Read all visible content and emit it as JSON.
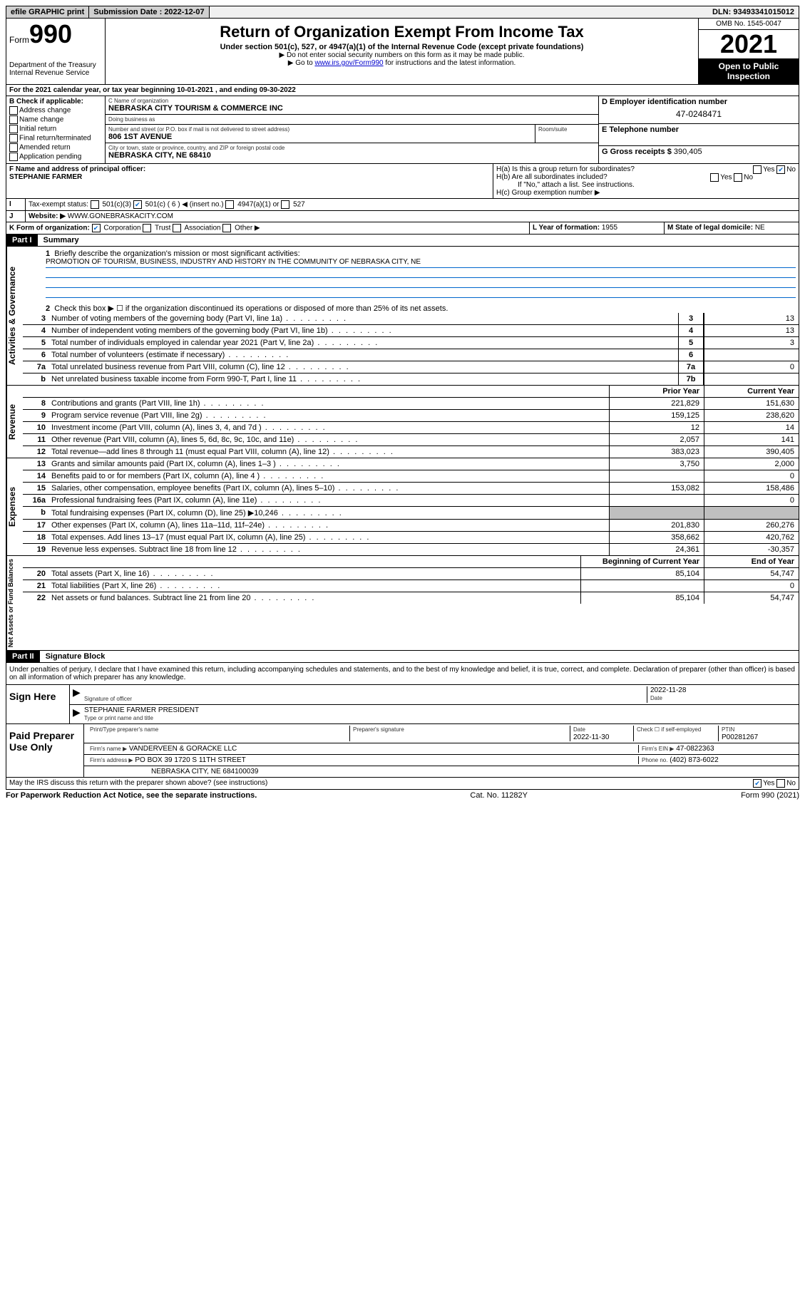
{
  "topbar": {
    "efile": "efile GRAPHIC print",
    "sub_label": "Submission Date : 2022-12-07",
    "dln": "DLN: 93493341015012"
  },
  "header": {
    "form_prefix": "Form",
    "form_num": "990",
    "dept": "Department of the Treasury Internal Revenue Service",
    "title": "Return of Organization Exempt From Income Tax",
    "subtitle": "Under section 501(c), 527, or 4947(a)(1) of the Internal Revenue Code (except private foundations)",
    "note1": "▶ Do not enter social security numbers on this form as it may be made public.",
    "note2_pre": "▶ Go to ",
    "note2_link": "www.irs.gov/Form990",
    "note2_post": " for instructions and the latest information.",
    "omb": "OMB No. 1545-0047",
    "year": "2021",
    "inspect": "Open to Public Inspection"
  },
  "line_a": "For the 2021 calendar year, or tax year beginning 10-01-2021  , and ending 09-30-2022",
  "section_b": {
    "label": "B Check if applicable:",
    "items": [
      "Address change",
      "Name change",
      "Initial return",
      "Final return/terminated",
      "Amended return",
      "Application pending"
    ]
  },
  "section_c": {
    "name_label": "C Name of organization",
    "name": "NEBRASKA CITY TOURISM & COMMERCE INC",
    "dba_label": "Doing business as",
    "street_label": "Number and street (or P.O. box if mail is not delivered to street address)",
    "room_label": "Room/suite",
    "street": "806 1ST AVENUE",
    "city_label": "City or town, state or province, country, and ZIP or foreign postal code",
    "city": "NEBRASKA CITY, NE  68410"
  },
  "section_d": {
    "label": "D Employer identification number",
    "value": "47-0248471"
  },
  "section_e": {
    "label": "E Telephone number",
    "value": ""
  },
  "section_g": {
    "label": "G Gross receipts $",
    "value": "390,405"
  },
  "section_f": {
    "label": "F Name and address of principal officer:",
    "name": "STEPHANIE FARMER"
  },
  "section_h": {
    "a": "H(a)  Is this a group return for subordinates?",
    "b": "H(b)  Are all subordinates included?",
    "b_note": "If \"No,\" attach a list. See instructions.",
    "c": "H(c)  Group exemption number ▶",
    "yes": "Yes",
    "no": "No"
  },
  "section_i": {
    "label": "Tax-exempt status:",
    "c3": "501(c)(3)",
    "c": "501(c) ( 6 ) ◀ (insert no.)",
    "a1": "4947(a)(1) or",
    "s527": "527"
  },
  "section_j": {
    "label": "Website: ▶",
    "value": "WWW.GONEBRASKACITY.COM"
  },
  "section_k": {
    "label": "K Form of organization:",
    "opts": [
      "Corporation",
      "Trust",
      "Association",
      "Other ▶"
    ]
  },
  "section_l": {
    "label": "L Year of formation:",
    "value": "1955"
  },
  "section_m": {
    "label": "M State of legal domicile:",
    "value": "NE"
  },
  "part1": {
    "header": "Part I",
    "title": "Summary",
    "line1_label": "Briefly describe the organization's mission or most significant activities:",
    "mission": "PROMOTION OF TOURISM, BUSINESS, INDUSTRY AND HISTORY IN THE COMMUNITY OF NEBRASKA CITY, NE",
    "line2_label": "Check this box ▶ ☐ if the organization discontinued its operations or disposed of more than 25% of its net assets.",
    "sections": {
      "governance": "Activities & Governance",
      "revenue": "Revenue",
      "expenses": "Expenses",
      "netassets": "Net Assets or Fund Balances"
    },
    "gov_lines": [
      {
        "num": "3",
        "desc": "Number of voting members of the governing body (Part VI, line 1a)",
        "ref": "3",
        "val": "13"
      },
      {
        "num": "4",
        "desc": "Number of independent voting members of the governing body (Part VI, line 1b)",
        "ref": "4",
        "val": "13"
      },
      {
        "num": "5",
        "desc": "Total number of individuals employed in calendar year 2021 (Part V, line 2a)",
        "ref": "5",
        "val": "3"
      },
      {
        "num": "6",
        "desc": "Total number of volunteers (estimate if necessary)",
        "ref": "6",
        "val": ""
      },
      {
        "num": "7a",
        "desc": "Total unrelated business revenue from Part VIII, column (C), line 12",
        "ref": "7a",
        "val": "0"
      },
      {
        "num": "b",
        "desc": "Net unrelated business taxable income from Form 990-T, Part I, line 11",
        "ref": "7b",
        "val": ""
      }
    ],
    "prior_label": "Prior Year",
    "current_label": "Current Year",
    "rev_lines": [
      {
        "num": "8",
        "desc": "Contributions and grants (Part VIII, line 1h)",
        "prior": "221,829",
        "curr": "151,630"
      },
      {
        "num": "9",
        "desc": "Program service revenue (Part VIII, line 2g)",
        "prior": "159,125",
        "curr": "238,620"
      },
      {
        "num": "10",
        "desc": "Investment income (Part VIII, column (A), lines 3, 4, and 7d )",
        "prior": "12",
        "curr": "14"
      },
      {
        "num": "11",
        "desc": "Other revenue (Part VIII, column (A), lines 5, 6d, 8c, 9c, 10c, and 11e)",
        "prior": "2,057",
        "curr": "141"
      },
      {
        "num": "12",
        "desc": "Total revenue—add lines 8 through 11 (must equal Part VIII, column (A), line 12)",
        "prior": "383,023",
        "curr": "390,405"
      }
    ],
    "exp_lines": [
      {
        "num": "13",
        "desc": "Grants and similar amounts paid (Part IX, column (A), lines 1–3 )",
        "prior": "3,750",
        "curr": "2,000"
      },
      {
        "num": "14",
        "desc": "Benefits paid to or for members (Part IX, column (A), line 4 )",
        "prior": "",
        "curr": "0"
      },
      {
        "num": "15",
        "desc": "Salaries, other compensation, employee benefits (Part IX, column (A), lines 5–10)",
        "prior": "153,082",
        "curr": "158,486"
      },
      {
        "num": "16a",
        "desc": "Professional fundraising fees (Part IX, column (A), line 11e)",
        "prior": "",
        "curr": "0"
      },
      {
        "num": "b",
        "desc": "Total fundraising expenses (Part IX, column (D), line 25) ▶10,246",
        "prior": "grey",
        "curr": "grey"
      },
      {
        "num": "17",
        "desc": "Other expenses (Part IX, column (A), lines 11a–11d, 11f–24e)",
        "prior": "201,830",
        "curr": "260,276"
      },
      {
        "num": "18",
        "desc": "Total expenses. Add lines 13–17 (must equal Part IX, column (A), line 25)",
        "prior": "358,662",
        "curr": "420,762"
      },
      {
        "num": "19",
        "desc": "Revenue less expenses. Subtract line 18 from line 12",
        "prior": "24,361",
        "curr": "-30,357"
      }
    ],
    "begin_label": "Beginning of Current Year",
    "end_label": "End of Year",
    "net_lines": [
      {
        "num": "20",
        "desc": "Total assets (Part X, line 16)",
        "prior": "85,104",
        "curr": "54,747"
      },
      {
        "num": "21",
        "desc": "Total liabilities (Part X, line 26)",
        "prior": "",
        "curr": "0"
      },
      {
        "num": "22",
        "desc": "Net assets or fund balances. Subtract line 21 from line 20",
        "prior": "85,104",
        "curr": "54,747"
      }
    ]
  },
  "part2": {
    "header": "Part II",
    "title": "Signature Block",
    "declaration": "Under penalties of perjury, I declare that I have examined this return, including accompanying schedules and statements, and to the best of my knowledge and belief, it is true, correct, and complete. Declaration of preparer (other than officer) is based on all information of which preparer has any knowledge.",
    "sign_here": "Sign Here",
    "sig_officer_label": "Signature of officer",
    "date_label": "Date",
    "sig_date": "2022-11-28",
    "officer_name": "STEPHANIE FARMER  PRESIDENT",
    "officer_name_label": "Type or print name and title",
    "paid": "Paid Preparer Use Only",
    "prep_name_label": "Print/Type preparer's name",
    "prep_sig_label": "Preparer's signature",
    "prep_date_label": "Date",
    "prep_date": "2022-11-30",
    "check_label": "Check ☐ if self-employed",
    "ptin_label": "PTIN",
    "ptin": "P00281267",
    "firm_name_label": "Firm's name    ▶",
    "firm_name": "VANDERVEEN & GORACKE LLC",
    "firm_ein_label": "Firm's EIN ▶",
    "firm_ein": "47-0822363",
    "firm_addr_label": "Firm's address ▶",
    "firm_addr1": "PO BOX 39 1720 S 11TH STREET",
    "firm_addr2": "NEBRASKA CITY, NE  684100039",
    "phone_label": "Phone no.",
    "phone": "(402) 873-6022",
    "discuss": "May the IRS discuss this return with the preparer shown above? (see instructions)",
    "yes": "Yes",
    "no": "No"
  },
  "footer": {
    "left": "For Paperwork Reduction Act Notice, see the separate instructions.",
    "center": "Cat. No. 11282Y",
    "right": "Form 990 (2021)"
  }
}
